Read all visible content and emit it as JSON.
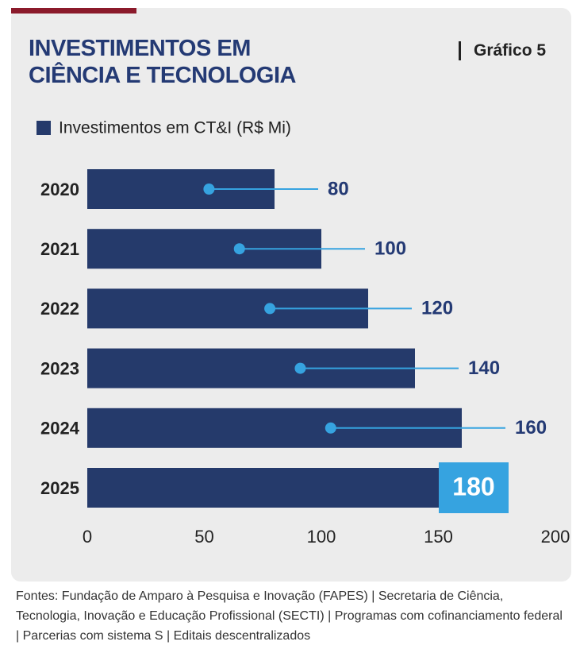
{
  "chart_data": {
    "type": "bar",
    "orientation": "horizontal",
    "title": "INVESTIMENTOS EM CIÊNCIA E TECNOLOGIA",
    "label": "Gráfico 5",
    "categories": [
      "2020",
      "2021",
      "2022",
      "2023",
      "2024",
      "2025"
    ],
    "series": [
      {
        "name": "Investimentos em CT&I (R$ Mi)",
        "color": "#253a6b",
        "values": [
          80,
          100,
          120,
          140,
          160,
          180
        ]
      }
    ],
    "xlim": [
      0,
      200
    ],
    "xticks": [
      0,
      50,
      100,
      150,
      200
    ],
    "source": "Fontes: Fundação de Amparo à Pesquisa e Inovação (FAPES) | Secretaria de Ciência, Tecnologia, Inovação e Educação Profissional (SECTI) | Programas com cofinanciamento federal | Parcerias com sistema S | Editais descentralizados"
  }
}
